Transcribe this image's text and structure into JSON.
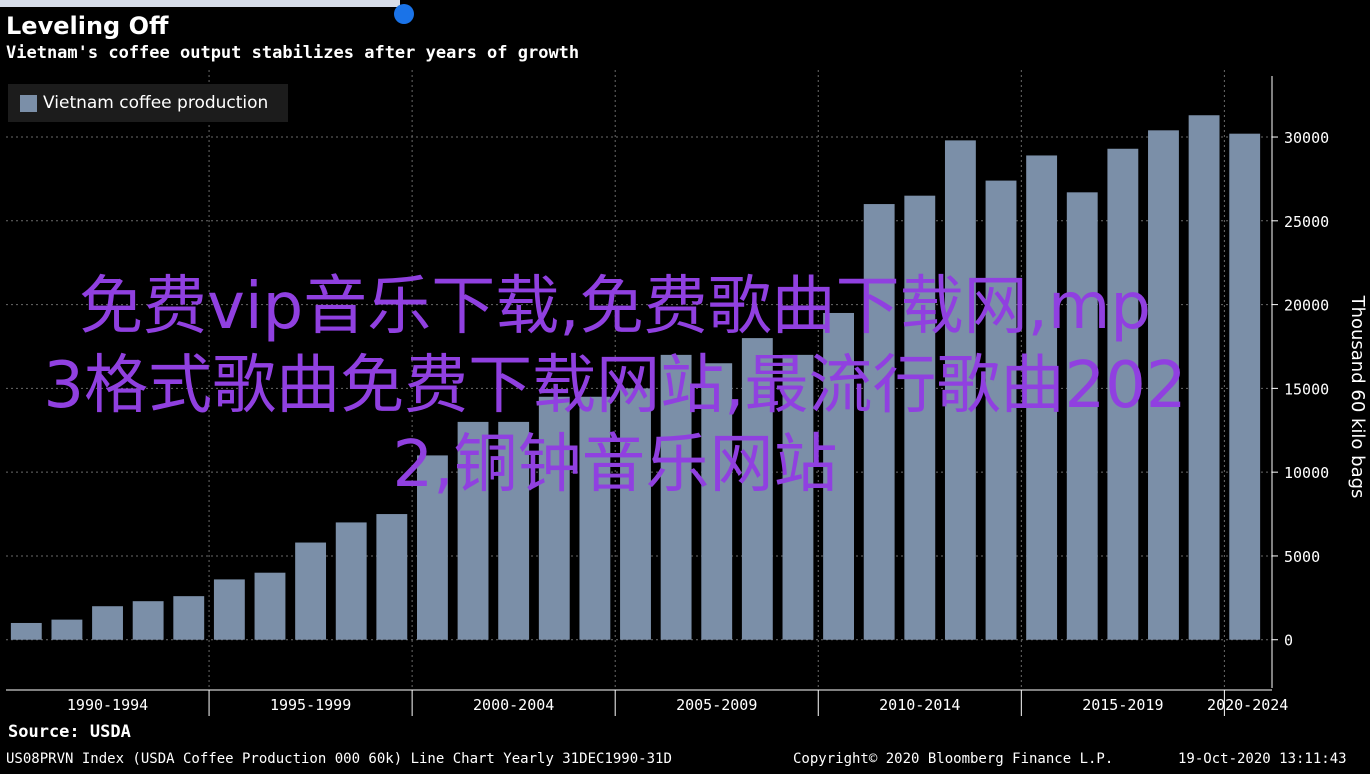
{
  "title": "Leveling Off",
  "subtitle": "Vietnam's coffee output stabilizes after years of growth",
  "source": "Source: USDA",
  "footer": {
    "index": "US08PRVN Index (USDA Coffee Production 000 60k) Line Chart  Yearly 31DEC1990-31D",
    "copyright": "Copyright© 2020 Bloomberg Finance L.P.",
    "timestamp": "19-Oct-2020 13:11:43"
  },
  "overlay_text": "免费vip音乐下载,免费歌曲下载网,mp\n3格式歌曲免费下载网站,最流行歌曲202\n2,铜钟音乐网站",
  "colors": {
    "background": "#000000",
    "bar": "#7b8fa8",
    "overlay": "#9040e0",
    "grid": "#666666"
  },
  "chart_data": {
    "type": "bar",
    "title": "Leveling Off",
    "subtitle": "Vietnam's coffee output stabilizes after years of growth",
    "ylabel": "Thousand 60 kilo bags",
    "xlabel": "",
    "legend": "top-left",
    "grid": true,
    "ylim": [
      -3000,
      34000
    ],
    "yticks": [
      0,
      5000,
      10000,
      15000,
      20000,
      25000,
      30000
    ],
    "ytick_labels": [
      "0",
      "5000",
      "10000",
      "15000",
      "20000",
      "25000",
      "30000"
    ],
    "x_groups": [
      "1990-1994",
      "1995-1999",
      "2000-2004",
      "2005-2009",
      "2010-2014",
      "2015-2019",
      "2020-2024"
    ],
    "series": [
      {
        "name": "Vietnam coffee production",
        "x": [
          1990,
          1991,
          1992,
          1993,
          1994,
          1995,
          1996,
          1997,
          1998,
          1999,
          2000,
          2001,
          2002,
          2003,
          2004,
          2005,
          2006,
          2007,
          2008,
          2009,
          2010,
          2011,
          2012,
          2013,
          2014,
          2015,
          2016,
          2017,
          2018,
          2019,
          2020
        ],
        "values": [
          1000,
          1200,
          2000,
          2300,
          2600,
          3600,
          4000,
          5800,
          7000,
          7500,
          11000,
          13000,
          13000,
          14500,
          14500,
          15000,
          17000,
          16500,
          18000,
          17000,
          19500,
          26000,
          26500,
          29800,
          27400,
          28900,
          26700,
          29300,
          30400,
          31300,
          30200
        ]
      }
    ]
  }
}
